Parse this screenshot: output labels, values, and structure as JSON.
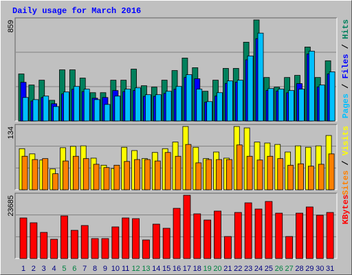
{
  "chart_data": [
    {
      "type": "bar",
      "title": "Daily usage for March 2016",
      "legend_separator": " / ",
      "ylim": [
        0,
        859
      ],
      "yticks": [
        859
      ],
      "series": [
        {
          "name": "Hits",
          "color": "#00805c",
          "values": [
            400,
            306,
            347,
            176,
            435,
            435,
            365,
            241,
            241,
            347,
            347,
            441,
            300,
            288,
            347,
            429,
            535,
            453,
            253,
            347,
            447,
            447,
            670,
            859,
            370,
            288,
            370,
            388,
            629,
            370,
            512
          ]
        },
        {
          "name": "Files",
          "color": "#0000ff",
          "values": [
            329,
            170,
            200,
            147,
            230,
            270,
            250,
            194,
            200,
            259,
            250,
            260,
            210,
            210,
            235,
            270,
            370,
            359,
            160,
            212,
            320,
            330,
            520,
            700,
            260,
            255,
            240,
            318,
            570,
            290,
            400
          ]
        },
        {
          "name": "Pages",
          "color": "#00c0ff",
          "values": [
            200,
            182,
            212,
            123,
            247,
            294,
            271,
            182,
            141,
            212,
            271,
            282,
            224,
            224,
            253,
            294,
            394,
            271,
            165,
            241,
            341,
            347,
            553,
            747,
            276,
            271,
            259,
            271,
            594,
            306,
            418
          ]
        }
      ]
    },
    {
      "type": "bar",
      "legend_separator": " / ",
      "ylim": [
        0,
        134
      ],
      "yticks": [
        134
      ],
      "series": [
        {
          "name": "Visits",
          "color": "#ffff00",
          "values": [
            87,
            76,
            63,
            44,
            89,
            92,
            93,
            67,
            52,
            45,
            90,
            83,
            66,
            79,
            87,
            101,
            134,
            90,
            66,
            80,
            67,
            134,
            131,
            101,
            99,
            96,
            80,
            93,
            90,
            93,
            115
          ]
        },
        {
          "name": "Sites",
          "color": "#ff8000",
          "values": [
            71,
            64,
            66,
            34,
            61,
            71,
            66,
            54,
            47,
            52,
            60,
            64,
            64,
            61,
            79,
            71,
            96,
            57,
            64,
            64,
            64,
            95,
            71,
            63,
            71,
            66,
            52,
            55,
            50,
            54,
            76
          ]
        }
      ]
    },
    {
      "type": "bar",
      "ylim": [
        0,
        23685
      ],
      "yticks": [
        23685
      ],
      "categories": [
        "1",
        "2",
        "3",
        "4",
        "5",
        "6",
        "7",
        "8",
        "9",
        "10",
        "11",
        "12",
        "13",
        "14",
        "15",
        "16",
        "17",
        "18",
        "19",
        "20",
        "21",
        "22",
        "23",
        "24",
        "25",
        "26",
        "27",
        "28",
        "29",
        "30",
        "31"
      ],
      "category_colors": [
        "#000080",
        "#000080",
        "#000080",
        "#000080",
        "#008040",
        "#008040",
        "#000080",
        "#000080",
        "#000080",
        "#000080",
        "#000080",
        "#008040",
        "#008040",
        "#000080",
        "#000080",
        "#000080",
        "#000080",
        "#000080",
        "#008040",
        "#008040",
        "#000080",
        "#000080",
        "#000080",
        "#000080",
        "#000080",
        "#008040",
        "#008040",
        "#000080",
        "#000080",
        "#000080",
        "#000080"
      ],
      "series": [
        {
          "name": "KBytes",
          "color": "#ff0000",
          "values": [
            15187,
            13385,
            9781,
            7207,
            15959,
            10553,
            12355,
            7465,
            7465,
            11840,
            15187,
            14929,
            6950,
            12870,
            11326,
            18790,
            23685,
            16731,
            14414,
            17761,
            8237,
            17246,
            20849,
            18533,
            21364,
            16988,
            8237,
            16988,
            19305,
            16216,
            17246
          ]
        }
      ]
    }
  ]
}
